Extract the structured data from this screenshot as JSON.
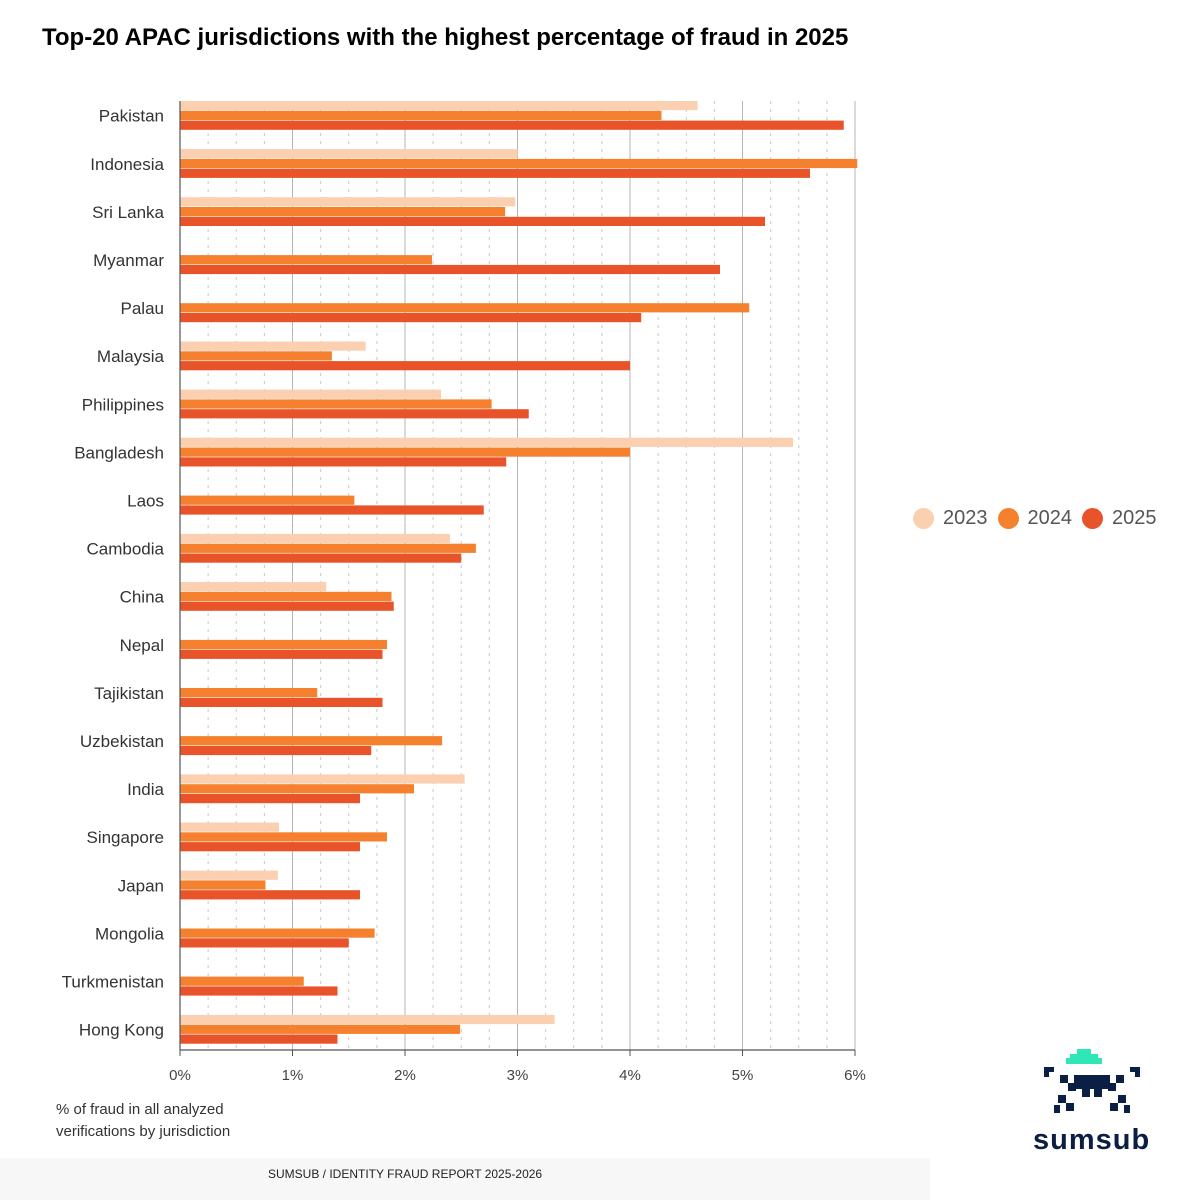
{
  "title": "Top-20 APAC jurisdictions with the highest percentage of fraud in 2025",
  "legend": {
    "items": [
      {
        "label": "2023",
        "color": "#fad0b0"
      },
      {
        "label": "2024",
        "color": "#f5802e"
      },
      {
        "label": "2025",
        "color": "#e8532a"
      }
    ]
  },
  "note": {
    "line1": "% of fraud in all analyzed",
    "line2": "verifications by jurisdiction"
  },
  "source": "SUMSUB / IDENTITY FRAUD REPORT 2025-2026",
  "brand": {
    "name": "sumsub",
    "accent": "#2ee6b6",
    "dark": "#0b1f44"
  },
  "chart_data": {
    "type": "bar",
    "orientation": "horizontal",
    "title": "Top-20 APAC jurisdictions with the highest percentage of fraud in 2025",
    "xlabel": "% of fraud in all analyzed verifications by jurisdiction",
    "ylabel": "",
    "xlim": [
      0,
      6
    ],
    "ticks": [
      0,
      1,
      2,
      3,
      4,
      5,
      6
    ],
    "tick_labels": [
      "0%",
      "1%",
      "2%",
      "3%",
      "4%",
      "5%",
      "6%"
    ],
    "legend_position": "right",
    "categories": [
      "Pakistan",
      "Indonesia",
      "Sri Lanka",
      "Myanmar",
      "Palau",
      "Malaysia",
      "Philippines",
      "Bangladesh",
      "Laos",
      "Cambodia",
      "China",
      "Nepal",
      "Tajikistan",
      "Uzbekistan",
      "India",
      "Singapore",
      "Japan",
      "Mongolia",
      "Turkmenistan",
      "Hong Kong"
    ],
    "series": [
      {
        "name": "2023",
        "color": "#fad0b0",
        "values": [
          4.6,
          3.0,
          2.98,
          null,
          null,
          1.65,
          2.32,
          5.45,
          null,
          2.4,
          1.3,
          null,
          null,
          null,
          2.53,
          0.88,
          0.87,
          null,
          null,
          3.33
        ]
      },
      {
        "name": "2024",
        "color": "#f5802e",
        "values": [
          4.28,
          6.02,
          2.89,
          2.24,
          5.06,
          1.35,
          2.77,
          4.0,
          1.55,
          2.63,
          1.88,
          1.84,
          1.22,
          2.33,
          2.08,
          1.84,
          0.76,
          1.73,
          1.1,
          2.49
        ]
      },
      {
        "name": "2025",
        "color": "#e8532a",
        "values": [
          5.9,
          5.6,
          5.2,
          4.8,
          4.1,
          4.0,
          3.1,
          2.9,
          2.7,
          2.5,
          1.9,
          1.8,
          1.8,
          1.7,
          1.6,
          1.6,
          1.6,
          1.5,
          1.4,
          1.4
        ]
      }
    ]
  }
}
